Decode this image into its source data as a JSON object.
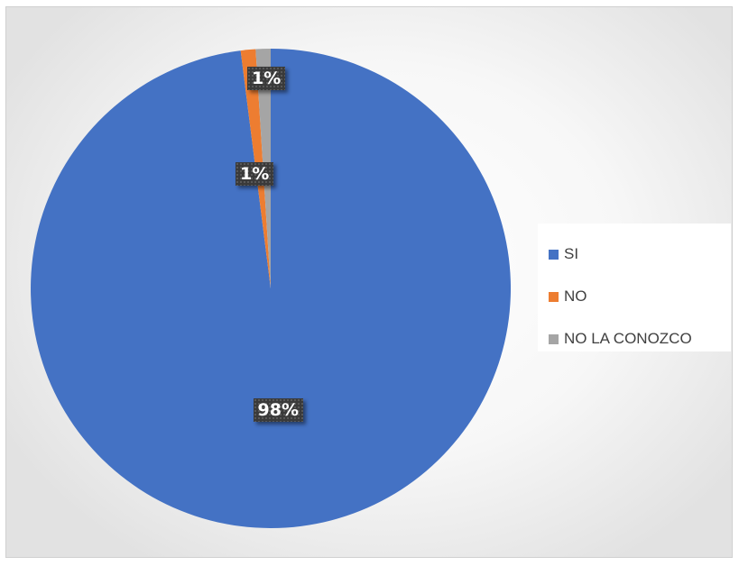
{
  "chart_data": {
    "type": "pie",
    "categories": [
      "SI",
      "NO",
      "NO LA CONOZCO"
    ],
    "values": [
      98,
      1,
      1
    ],
    "data_labels": [
      "98%",
      "1%",
      "1%"
    ],
    "colors": [
      "#4472C4",
      "#ED7D31",
      "#A5A5A5"
    ],
    "legend_position": "right",
    "start_angle": "12 o'clock, clockwise"
  }
}
